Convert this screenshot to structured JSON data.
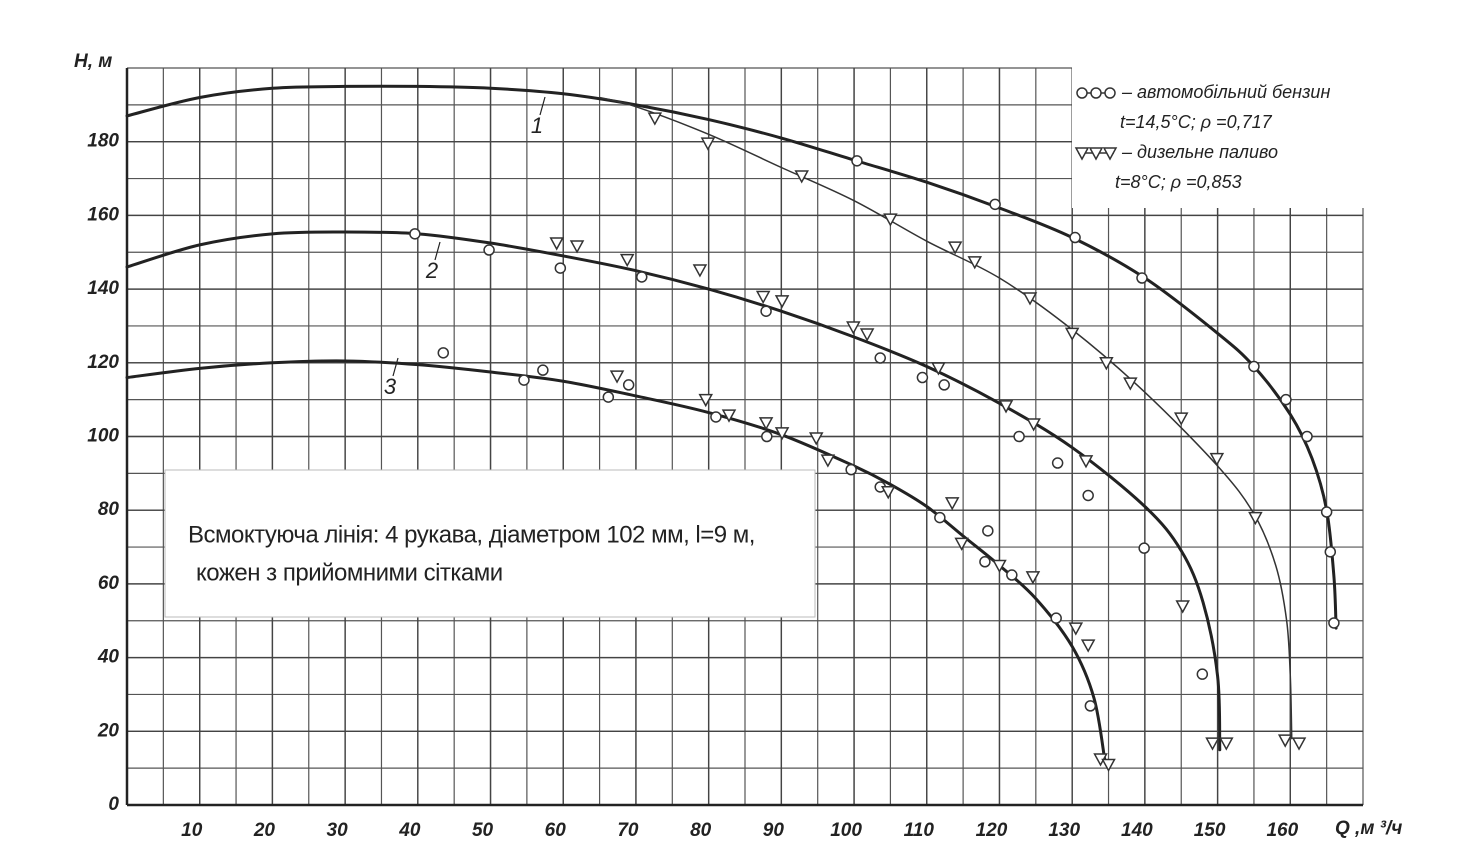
{
  "chart_data": {
    "type": "line",
    "xlabel": "Q ,м ³/ч",
    "ylabel": "H, м",
    "xlim": [
      0,
      170
    ],
    "ylim": [
      0,
      200
    ],
    "xticks": [
      10,
      20,
      30,
      40,
      50,
      60,
      70,
      80,
      90,
      100,
      110,
      120,
      130,
      140,
      150,
      160
    ],
    "yticks": [
      0,
      20,
      40,
      60,
      80,
      100,
      120,
      140,
      160,
      180
    ],
    "grid": true,
    "annotation": [
      "Всмоктуюча лінія: 4 рукава, діаметром 102 мм, l=9 м,",
      "кожен з прийомними сітками"
    ],
    "curves": [
      {
        "label": "1",
        "color": "#222",
        "width": 3,
        "x": [
          0,
          10,
          20,
          30,
          40,
          50,
          60,
          70,
          80,
          90,
          100,
          110,
          120,
          130,
          140,
          150,
          155,
          160,
          163,
          165,
          166,
          166.3
        ],
        "values": [
          187,
          192,
          194.5,
          195,
          195,
          194.5,
          193,
          190,
          186,
          181,
          175,
          169,
          162,
          154,
          143,
          128,
          119,
          106,
          94,
          80,
          62,
          48
        ]
      },
      {
        "color": "#333",
        "width": 1.5,
        "x": [
          65,
          70,
          80,
          90,
          100,
          110,
          120,
          130,
          140,
          150,
          155,
          158,
          159.5,
          160,
          160.2
        ],
        "values": [
          192,
          189.5,
          182,
          173,
          164,
          153,
          143,
          129,
          112,
          92,
          79,
          65,
          50,
          35,
          18
        ]
      },
      {
        "label": "2",
        "color": "#222",
        "width": 3,
        "x": [
          0,
          10,
          20,
          30,
          40,
          50,
          60,
          70,
          80,
          90,
          100,
          110,
          120,
          130,
          140,
          145,
          148,
          150,
          150.3
        ],
        "values": [
          146,
          152,
          155,
          155.5,
          155,
          152.5,
          149,
          145,
          140,
          134,
          127,
          119,
          109,
          97,
          81,
          69,
          55,
          35,
          15
        ]
      },
      {
        "label": "3",
        "color": "#222",
        "width": 3,
        "x": [
          0,
          10,
          20,
          30,
          40,
          50,
          60,
          70,
          80,
          90,
          100,
          105,
          110,
          115,
          120,
          125,
          130,
          133,
          134.5
        ],
        "values": [
          116,
          118.5,
          120,
          120.5,
          119.5,
          117.5,
          115,
          111,
          106.5,
          100.5,
          92,
          87,
          81,
          73,
          65,
          56,
          43,
          29,
          12
        ]
      }
    ],
    "series": [
      {
        "name": "автомобільний бензин",
        "note": "t=14,5°C; ρ =0,717",
        "marker": "circle",
        "color": "#333",
        "x": [
          100.4,
          119.4,
          130.4,
          139.6,
          155,
          159.4,
          162.3,
          165,
          165.5,
          166,
          39.6,
          49.8,
          59.6,
          70.8,
          87.9,
          103.6,
          109.4,
          112.4,
          122.7,
          128,
          132.2,
          139.9,
          147.9,
          43.5,
          54.6,
          57.2,
          66.2,
          69,
          81,
          88,
          99.6,
          103.6,
          111.8,
          118.4,
          118,
          121.7,
          127.8,
          132.5
        ],
        "values": [
          174.8,
          163,
          154,
          143,
          119,
          110,
          100,
          79.5,
          68.7,
          49.4,
          155,
          150.6,
          145.7,
          143.3,
          134,
          121.3,
          116,
          114,
          100,
          92.8,
          84,
          69.7,
          35.5,
          122.7,
          115.3,
          118,
          110.7,
          114,
          105.3,
          100,
          91,
          86.3,
          78,
          74.4,
          66,
          62.4,
          50.7,
          26.9
        ]
      },
      {
        "name": "дизельне паливо",
        "note": "t=8°C; ρ =0,853",
        "marker": "triangle",
        "color": "#333",
        "x": [
          72.6,
          79.9,
          92.8,
          105,
          113.9,
          116.6,
          124.2,
          130,
          134.7,
          138,
          145,
          149.9,
          155.2,
          145.2,
          149.3,
          151.2,
          159.3,
          161.2,
          59.1,
          61.9,
          68.8,
          78.8,
          87.5,
          90.1,
          99.9,
          101.8,
          111.6,
          120.9,
          124.7,
          131.9,
          67.4,
          79.6,
          82.8,
          87.9,
          90.1,
          94.8,
          96.4,
          104.7,
          113.5,
          114.8,
          120,
          124.6,
          130.5,
          132.2,
          133.9,
          135
        ],
        "values": [
          186.4,
          179.6,
          170.7,
          159,
          151.4,
          147.4,
          137.6,
          128,
          120,
          114.5,
          105,
          94,
          78,
          54,
          16.8,
          16.8,
          17.6,
          16.8,
          152.5,
          151.7,
          148,
          145.2,
          138,
          136.8,
          129.7,
          127.8,
          118.6,
          108.3,
          103.4,
          93.4,
          116.4,
          110,
          105.8,
          103.7,
          101,
          99.6,
          93.6,
          85,
          82,
          71,
          65,
          61.9,
          48,
          43.4,
          12.5,
          11
        ]
      }
    ]
  }
}
